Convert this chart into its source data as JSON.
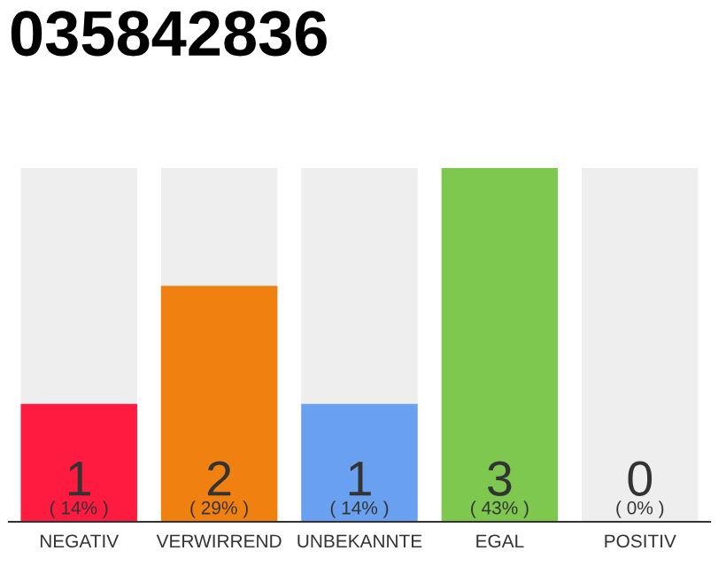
{
  "chart_data": {
    "type": "bar",
    "title": "035842836",
    "bands": [
      {
        "axis": "x",
        "from": "NEGATIV",
        "to": "NEGATIV",
        "color": "#eeeeee"
      },
      {
        "axis": "x",
        "from": "VERWIRREND",
        "to": "VERWIRREND",
        "color": "#eeeeee"
      },
      {
        "axis": "x",
        "from": "UNBEKANNTE",
        "to": "UNBEKANNTE",
        "color": "#eeeeee"
      },
      {
        "axis": "x",
        "from": "POSITIV",
        "to": "POSITIV",
        "color": "#eeeeee"
      }
    ],
    "categories": [
      "NEGATIV",
      "VERWIRREND",
      "UNBEKANNTE",
      "EGAL",
      "POSITIV"
    ],
    "values": [
      1,
      2,
      1,
      3,
      0
    ],
    "colors": [
      "#ff1a40",
      "#f08010",
      "#6aa0f0",
      "#7ec850",
      "#bbbbbb"
    ],
    "value_labels": [
      "1\n( 14% )",
      "2\n( 29% )",
      "1\n( 14% )",
      "3\n( 43% )",
      "0\n( 0% )"
    ],
    "grid": false,
    "legend": false
  }
}
